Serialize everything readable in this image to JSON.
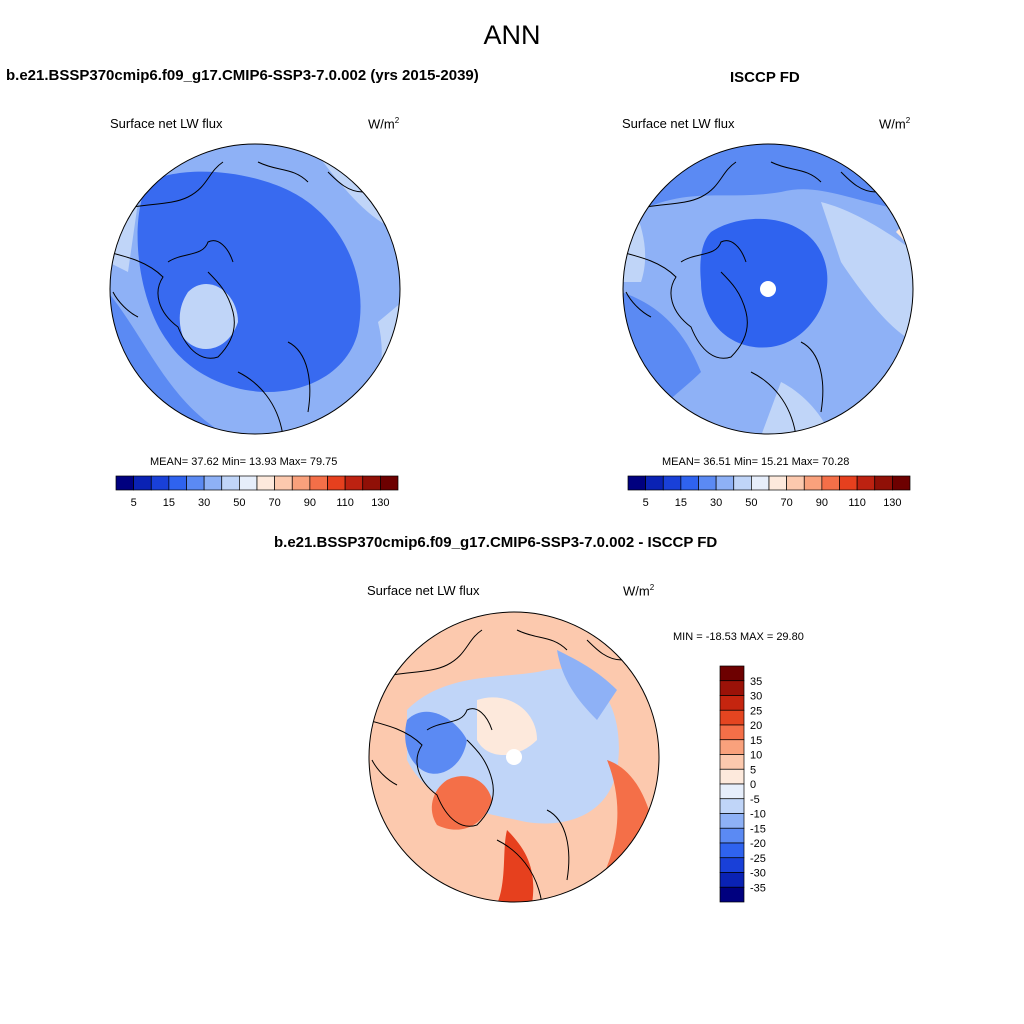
{
  "season": "ANN",
  "colors": {
    "abs_scale": [
      "#00007f",
      "#0a22b4",
      "#1940d8",
      "#2f63ef",
      "#5b8af3",
      "#8eb1f6",
      "#c0d5f8",
      "#e6eefb",
      "#fde9dc",
      "#fcc9ae",
      "#f9a17c",
      "#f46f48",
      "#e6401e",
      "#bd2211",
      "#901007",
      "#6d0000"
    ],
    "diff_scale": [
      "#6d0000",
      "#9b1208",
      "#c5250f",
      "#e44520",
      "#f46f48",
      "#f9a17c",
      "#fcc9ae",
      "#fde9dc",
      "#e6eefb",
      "#c0d5f8",
      "#8eb1f6",
      "#5b8af3",
      "#2f63ef",
      "#1940d8",
      "#0a22b4",
      "#00007f"
    ],
    "coastline": "#000000"
  },
  "panels": {
    "model": {
      "title": "b.e21.BSSP370cmip6.f09_g17.CMIP6-SSP3-7.0.002 (yrs 2015-2039)",
      "variable": "Surface net LW flux",
      "units": "W/m",
      "units_exp": "2",
      "stats": "MEAN=  37.62  Min=  13.93  Max=  79.75"
    },
    "obs": {
      "title": "ISCCP FD",
      "variable": "Surface net LW flux",
      "units": "W/m",
      "units_exp": "2",
      "stats": "MEAN=  36.51  Min=  15.21  Max=  70.28"
    },
    "diff": {
      "title": "b.e21.BSSP370cmip6.f09_g17.CMIP6-SSP3-7.0.002 - ISCCP FD",
      "variable": "Surface net LW flux",
      "units": "W/m",
      "units_exp": "2",
      "stats": "MIN = -18.53 MAX =  29.80"
    }
  },
  "colorbar_abs": {
    "levels": [
      5,
      10,
      15,
      20,
      30,
      40,
      50,
      60,
      70,
      80,
      90,
      100,
      110,
      120,
      130
    ],
    "tick_labels": [
      "5",
      "15",
      "30",
      "50",
      "70",
      "90",
      "110",
      "130"
    ]
  },
  "colorbar_diff": {
    "levels": [
      35,
      30,
      25,
      20,
      15,
      10,
      5,
      0,
      -5,
      -10,
      -15,
      -20,
      -25,
      -30,
      -35
    ],
    "tick_labels": [
      "35",
      "30",
      "25",
      "20",
      "15",
      "10",
      "5",
      "0",
      "-5",
      "-10",
      "-15",
      "-20",
      "-25",
      "-30",
      "-35"
    ]
  }
}
